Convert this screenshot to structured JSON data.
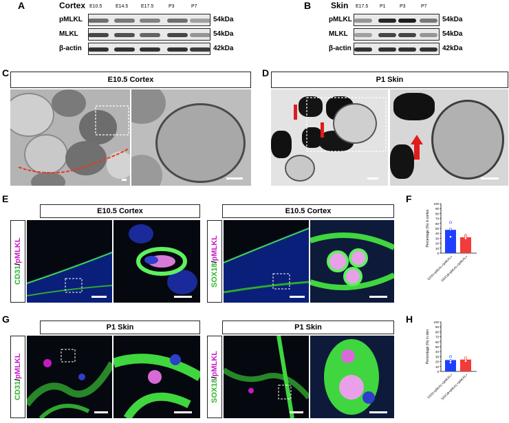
{
  "panels": {
    "A": {
      "letter": "A",
      "tissue": "Cortex",
      "lanes": [
        "E10.5",
        "E14.5",
        "E17.5",
        "P3",
        "P7"
      ],
      "rows": [
        {
          "label": "pMLKL",
          "kda": "54kDa",
          "intensity": [
            0.55,
            0.5,
            0.45,
            0.55,
            0.3
          ]
        },
        {
          "label": "MLKL",
          "kda": "54kDa",
          "intensity": [
            0.75,
            0.7,
            0.6,
            0.75,
            0.35
          ]
        },
        {
          "label": "β-actin",
          "kda": "42kDa",
          "intensity": [
            0.85,
            0.85,
            0.85,
            0.85,
            0.8
          ]
        }
      ]
    },
    "B": {
      "letter": "B",
      "tissue": "Skin",
      "lanes": [
        "E17.5",
        "P1",
        "P3",
        "P7"
      ],
      "rows": [
        {
          "label": "pMLKL",
          "kda": "54kDa",
          "intensity": [
            0.35,
            0.9,
            0.95,
            0.5
          ]
        },
        {
          "label": "MLKL",
          "kda": "54kDa",
          "intensity": [
            0.3,
            0.75,
            0.75,
            0.35
          ]
        },
        {
          "label": "β-actin",
          "kda": "42kDa",
          "intensity": [
            0.85,
            0.85,
            0.85,
            0.85
          ]
        }
      ]
    },
    "C": {
      "letter": "C",
      "title": "E10.5  Cortex"
    },
    "D": {
      "letter": "D",
      "title": "P1 Skin"
    },
    "E": {
      "letter": "E",
      "title_left": "E10.5 Cortex",
      "title_right": "E10.5 Cortex",
      "stain_left_a": "CD31",
      "stain_right_a": "SOX18",
      "stain_b": "pMLKL",
      "sep": "/"
    },
    "G": {
      "letter": "G",
      "title_left": "P1 Skin",
      "title_right": "P1 Skin",
      "stain_left_a": "CD31",
      "stain_right_a": "SOX18",
      "stain_b": "pMLKL",
      "sep": "/"
    },
    "F": {
      "letter": "F"
    },
    "H": {
      "letter": "H"
    }
  },
  "chart_data": [
    {
      "id": "F",
      "type": "bar",
      "ylabel": "Percentage (%) in cortex",
      "ylim": [
        0,
        100
      ],
      "yticks": [
        0,
        10,
        20,
        30,
        40,
        50,
        60,
        70,
        80,
        90,
        100
      ],
      "categories": [
        "CD31+pMLKL+/pMLKL+",
        "SOX18+pMLKL+/pMLKL+"
      ],
      "values": [
        47,
        32
      ],
      "points": [
        [
          62,
          48,
          33
        ],
        [
          36,
          33,
          30
        ]
      ],
      "colors": [
        "#1f3fff",
        "#f23b3b"
      ]
    },
    {
      "id": "H",
      "type": "bar",
      "ylabel": "Percentage (%) in skin",
      "ylim": [
        0,
        100
      ],
      "yticks": [
        0,
        10,
        20,
        30,
        40,
        50,
        60,
        70,
        80,
        90,
        100
      ],
      "categories": [
        "CD31+pMLKL+/pMLKL+",
        "SOX18+pMLKL+/pMLKL+"
      ],
      "values": [
        23,
        24
      ],
      "points": [
        [
          30,
          22,
          18
        ],
        [
          28,
          24,
          21
        ]
      ],
      "colors": [
        "#1f3fff",
        "#f23b3b"
      ]
    }
  ]
}
